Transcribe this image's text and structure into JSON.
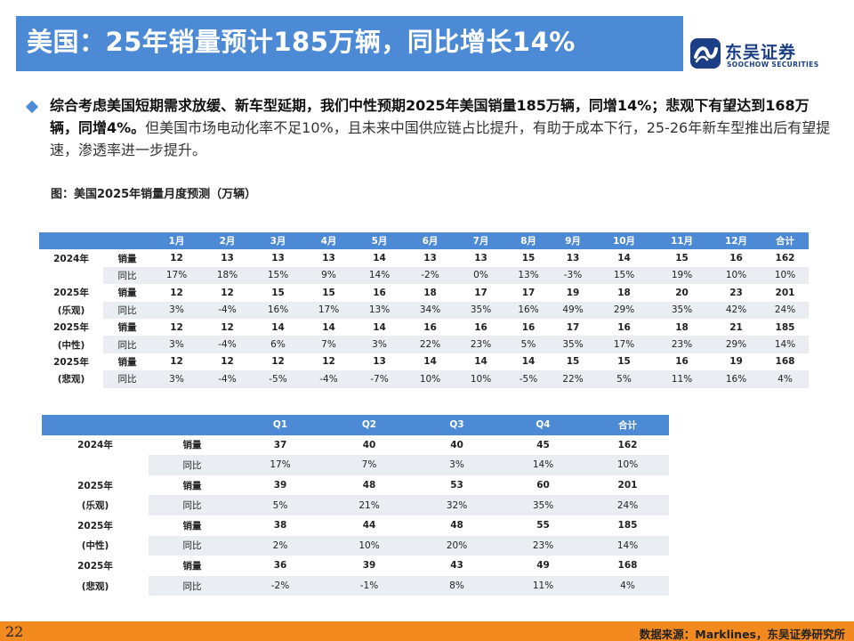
{
  "title": "美国：25年销量预计185万辆，同比增长14%",
  "logo": {
    "name_cn": "东吴证券",
    "name_en": "SOOCHOW SECURITIES",
    "icon": "soochow-logo-icon",
    "color": "#1a3f86"
  },
  "summary": {
    "bold_part": "综合考虑美国短期需求放缓、新车型延期，我们中性预期2025年美国销量185万辆，同增14%；悲观下有望达到168万辆，同增4%。",
    "normal_part": "但美国市场电动化率不足10%，且未来中国供应链占比提升，有助于成本下行，25-26年新车型推出后有望提速，渗透率进一步提升。"
  },
  "chart_caption": "图：美国2025年销量月度预测（万辆）",
  "monthly_table": {
    "headers": [
      "",
      "",
      "1月",
      "2月",
      "3月",
      "4月",
      "5月",
      "6月",
      "7月",
      "8月",
      "9月",
      "10月",
      "11月",
      "12月",
      "合计"
    ],
    "groups": [
      {
        "label_top": "2024年",
        "label_bottom": "",
        "rows": [
          {
            "metric": "销量",
            "values": [
              "12",
              "13",
              "13",
              "13",
              "14",
              "13",
              "13",
              "15",
              "13",
              "14",
              "15",
              "16",
              "162"
            ]
          },
          {
            "metric": "同比",
            "values": [
              "17%",
              "18%",
              "15%",
              "9%",
              "14%",
              "-2%",
              "0%",
              "13%",
              "-3%",
              "15%",
              "19%",
              "10%",
              "10%"
            ]
          }
        ]
      },
      {
        "label_top": "2025年",
        "label_bottom": "(乐观)",
        "rows": [
          {
            "metric": "销量",
            "values": [
              "12",
              "12",
              "15",
              "15",
              "16",
              "18",
              "17",
              "17",
              "19",
              "18",
              "20",
              "23",
              "201"
            ]
          },
          {
            "metric": "同比",
            "values": [
              "3%",
              "-4%",
              "16%",
              "17%",
              "13%",
              "34%",
              "35%",
              "16%",
              "49%",
              "29%",
              "35%",
              "42%",
              "24%"
            ]
          }
        ]
      },
      {
        "label_top": "2025年",
        "label_bottom": "(中性)",
        "rows": [
          {
            "metric": "销量",
            "values": [
              "12",
              "12",
              "14",
              "14",
              "14",
              "16",
              "16",
              "16",
              "17",
              "16",
              "18",
              "21",
              "185"
            ]
          },
          {
            "metric": "同比",
            "values": [
              "3%",
              "-4%",
              "6%",
              "7%",
              "3%",
              "22%",
              "23%",
              "5%",
              "35%",
              "17%",
              "23%",
              "29%",
              "14%"
            ]
          }
        ]
      },
      {
        "label_top": "2025年",
        "label_bottom": "(悲观)",
        "rows": [
          {
            "metric": "销量",
            "values": [
              "12",
              "12",
              "12",
              "12",
              "13",
              "14",
              "14",
              "14",
              "15",
              "15",
              "16",
              "19",
              "168"
            ]
          },
          {
            "metric": "同比",
            "values": [
              "3%",
              "-4%",
              "-5%",
              "-4%",
              "-7%",
              "10%",
              "10%",
              "-5%",
              "22%",
              "5%",
              "11%",
              "16%",
              "4%"
            ]
          }
        ]
      }
    ]
  },
  "quarterly_table": {
    "headers": [
      "",
      "",
      "Q1",
      "Q2",
      "Q3",
      "Q4",
      "合计"
    ],
    "groups": [
      {
        "label_top": "2024年",
        "label_bottom": "",
        "rows": [
          {
            "metric": "销量",
            "values": [
              "37",
              "40",
              "40",
              "45",
              "162"
            ]
          },
          {
            "metric": "同比",
            "values": [
              "17%",
              "7%",
              "3%",
              "14%",
              "10%"
            ]
          }
        ]
      },
      {
        "label_top": "2025年",
        "label_bottom": "(乐观)",
        "rows": [
          {
            "metric": "销量",
            "values": [
              "39",
              "48",
              "53",
              "60",
              "201"
            ]
          },
          {
            "metric": "同比",
            "values": [
              "5%",
              "21%",
              "32%",
              "35%",
              "24%"
            ]
          }
        ]
      },
      {
        "label_top": "2025年",
        "label_bottom": "(中性)",
        "rows": [
          {
            "metric": "销量",
            "values": [
              "38",
              "44",
              "48",
              "55",
              "185"
            ]
          },
          {
            "metric": "同比",
            "values": [
              "2%",
              "10%",
              "20%",
              "23%",
              "14%"
            ]
          }
        ]
      },
      {
        "label_top": "2025年",
        "label_bottom": "(悲观)",
        "rows": [
          {
            "metric": "销量",
            "values": [
              "36",
              "39",
              "43",
              "49",
              "168"
            ]
          },
          {
            "metric": "同比",
            "values": [
              "-2%",
              "-1%",
              "8%",
              "11%",
              "4%"
            ]
          }
        ]
      }
    ]
  },
  "footer": {
    "page_number": "22",
    "source": "数据来源：Marklines，东吴证券研究所",
    "bar_color": "#f28a1f"
  },
  "colors": {
    "accent": "#4d8ad6",
    "stripe": "#eaedf2"
  }
}
